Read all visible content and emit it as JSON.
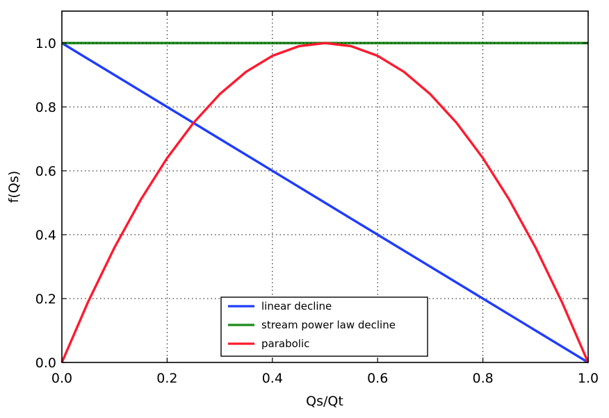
{
  "chart_data": {
    "type": "line",
    "title": "",
    "xlabel": "Qs/Qt",
    "ylabel": "f(Qs)",
    "xlim": [
      0.0,
      1.0
    ],
    "ylim": [
      0.0,
      1.1
    ],
    "xticks": [
      0.0,
      0.2,
      0.4,
      0.6,
      0.8,
      1.0
    ],
    "xtick_labels": [
      "0.0",
      "0.2",
      "0.4",
      "0.6",
      "0.8",
      "1.0"
    ],
    "yticks": [
      0.0,
      0.2,
      0.4,
      0.6,
      0.8,
      1.0
    ],
    "ytick_labels": [
      "0.0",
      "0.2",
      "0.4",
      "0.6",
      "0.8",
      "1.0"
    ],
    "grid": true,
    "legend_position": "bottom-center",
    "series": [
      {
        "name": "linear decline",
        "color": "#1f3cff",
        "x": [
          0.0,
          0.1,
          0.2,
          0.3,
          0.4,
          0.5,
          0.6,
          0.7,
          0.8,
          0.9,
          1.0
        ],
        "y": [
          1.0,
          0.9,
          0.8,
          0.7,
          0.6,
          0.5,
          0.4,
          0.3,
          0.2,
          0.1,
          0.0
        ]
      },
      {
        "name": "stream power law decline",
        "color": "#1a8a1a",
        "x": [
          0.0,
          0.1,
          0.2,
          0.3,
          0.4,
          0.5,
          0.6,
          0.7,
          0.8,
          0.9,
          1.0
        ],
        "y": [
          1.0,
          1.0,
          1.0,
          1.0,
          1.0,
          1.0,
          1.0,
          1.0,
          1.0,
          1.0,
          1.0
        ]
      },
      {
        "name": "parabolic",
        "color": "#ff1a2e",
        "x": [
          0.0,
          0.05,
          0.1,
          0.15,
          0.2,
          0.25,
          0.3,
          0.35,
          0.4,
          0.45,
          0.5,
          0.55,
          0.6,
          0.65,
          0.7,
          0.75,
          0.8,
          0.85,
          0.9,
          0.95,
          1.0
        ],
        "y": [
          0.0,
          0.19,
          0.36,
          0.51,
          0.64,
          0.75,
          0.84,
          0.91,
          0.96,
          0.99,
          1.0,
          0.99,
          0.96,
          0.91,
          0.84,
          0.75,
          0.64,
          0.51,
          0.36,
          0.19,
          0.0
        ]
      }
    ]
  }
}
